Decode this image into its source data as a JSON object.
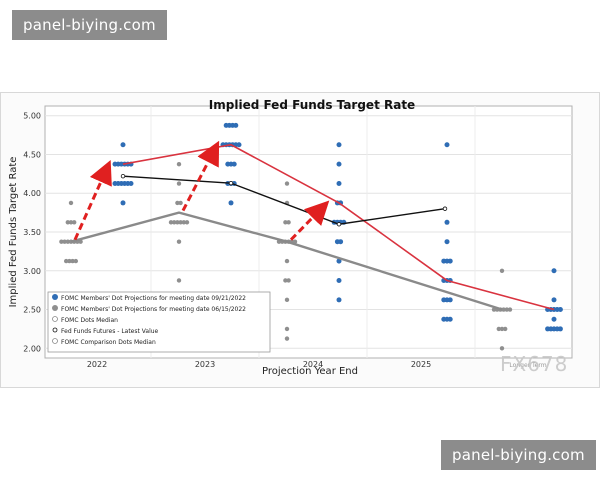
{
  "watermark_top": "panel-biying.com",
  "watermark_bottom": "panel-biying.com",
  "logo_text": "FX678",
  "chart_data": {
    "type": "scatter",
    "title": "Implied Fed Funds Target Rate",
    "xlabel": "Projection Year End",
    "ylabel": "Implied Fed Funds Target Rate",
    "ylim": [
      1.875,
      5.125
    ],
    "yticks": [
      "2.00",
      "2.50",
      "3.00",
      "3.50",
      "4.00",
      "4.50",
      "5.00"
    ],
    "categories": [
      "2022",
      "2023",
      "2024",
      "2025",
      "Longer Term"
    ],
    "series": [
      {
        "name": "FOMC Members' Dot Projections for meeting date 09/21/2022",
        "color": "#2f6db5",
        "dots": [
          {
            "year": "2022",
            "y": 4.625,
            "n": 1
          },
          {
            "year": "2022",
            "y": 4.375,
            "n": 6
          },
          {
            "year": "2022",
            "y": 4.125,
            "n": 6
          },
          {
            "year": "2022",
            "y": 3.875,
            "n": 1
          },
          {
            "year": "2023",
            "y": 4.875,
            "n": 4
          },
          {
            "year": "2023",
            "y": 4.625,
            "n": 6
          },
          {
            "year": "2023",
            "y": 4.375,
            "n": 3
          },
          {
            "year": "2023",
            "y": 4.125,
            "n": 3
          },
          {
            "year": "2023",
            "y": 3.875,
            "n": 1
          },
          {
            "year": "2024",
            "y": 4.625,
            "n": 1
          },
          {
            "year": "2024",
            "y": 4.375,
            "n": 1
          },
          {
            "year": "2024",
            "y": 4.125,
            "n": 1
          },
          {
            "year": "2024",
            "y": 3.875,
            "n": 2
          },
          {
            "year": "2024",
            "y": 3.625,
            "n": 4
          },
          {
            "year": "2024",
            "y": 3.375,
            "n": 2
          },
          {
            "year": "2024",
            "y": 3.125,
            "n": 1
          },
          {
            "year": "2024",
            "y": 2.875,
            "n": 1
          },
          {
            "year": "2024",
            "y": 2.625,
            "n": 1
          },
          {
            "year": "2025",
            "y": 4.625,
            "n": 1
          },
          {
            "year": "2025",
            "y": 3.625,
            "n": 1
          },
          {
            "year": "2025",
            "y": 3.375,
            "n": 1
          },
          {
            "year": "2025",
            "y": 3.125,
            "n": 3
          },
          {
            "year": "2025",
            "y": 2.875,
            "n": 3
          },
          {
            "year": "2025",
            "y": 2.625,
            "n": 3
          },
          {
            "year": "2025",
            "y": 2.375,
            "n": 3
          },
          {
            "year": "Longer Term",
            "y": 3.0,
            "n": 1
          },
          {
            "year": "Longer Term",
            "y": 2.625,
            "n": 1
          },
          {
            "year": "Longer Term",
            "y": 2.5,
            "n": 5
          },
          {
            "year": "Longer Term",
            "y": 2.375,
            "n": 1
          },
          {
            "year": "Longer Term",
            "y": 2.25,
            "n": 5
          }
        ]
      },
      {
        "name": "FOMC Members' Dot Projections for meeting date 06/15/2022",
        "color": "#8f8f8f",
        "dots": [
          {
            "year": "2022",
            "y": 3.875,
            "n": 1
          },
          {
            "year": "2022",
            "y": 3.625,
            "n": 3
          },
          {
            "year": "2022",
            "y": 3.375,
            "n": 7
          },
          {
            "year": "2022",
            "y": 3.125,
            "n": 4
          },
          {
            "year": "2023",
            "y": 4.375,
            "n": 1
          },
          {
            "year": "2023",
            "y": 4.125,
            "n": 1
          },
          {
            "year": "2023",
            "y": 3.875,
            "n": 2
          },
          {
            "year": "2023",
            "y": 3.625,
            "n": 6
          },
          {
            "year": "2023",
            "y": 3.375,
            "n": 1
          },
          {
            "year": "2023",
            "y": 2.875,
            "n": 1
          },
          {
            "year": "2024",
            "y": 4.125,
            "n": 1
          },
          {
            "year": "2024",
            "y": 3.875,
            "n": 1
          },
          {
            "year": "2024",
            "y": 3.625,
            "n": 2
          },
          {
            "year": "2024",
            "y": 3.375,
            "n": 6
          },
          {
            "year": "2024",
            "y": 3.125,
            "n": 1
          },
          {
            "year": "2024",
            "y": 2.875,
            "n": 2
          },
          {
            "year": "2024",
            "y": 2.625,
            "n": 1
          },
          {
            "year": "2024",
            "y": 2.25,
            "n": 1
          },
          {
            "year": "2024",
            "y": 2.125,
            "n": 1
          },
          {
            "year": "Longer Term",
            "y": 3.0,
            "n": 1
          },
          {
            "year": "Longer Term",
            "y": 2.5,
            "n": 6
          },
          {
            "year": "Longer Term",
            "y": 2.25,
            "n": 3
          },
          {
            "year": "Longer Term",
            "y": 2.0,
            "n": 1
          }
        ]
      }
    ],
    "lines": [
      {
        "name": "FOMC Dots Median",
        "color": "#d9333f",
        "points": [
          [
            "2022",
            4.375
          ],
          [
            "2023",
            4.625
          ],
          [
            "2024",
            3.875
          ],
          [
            "2025",
            2.875
          ],
          [
            "Longer Term",
            2.5
          ]
        ]
      },
      {
        "name": "Fed Funds Futures - Latest Value",
        "color": "#111111",
        "points": [
          [
            "2022",
            4.22
          ],
          [
            "2023",
            4.13
          ],
          [
            "2024",
            3.6
          ],
          [
            "2025",
            3.8
          ]
        ]
      },
      {
        "name": "FOMC Comparison Dots Median",
        "color": "#8a8a8a",
        "points": [
          [
            "2022",
            3.375
          ],
          [
            "2023",
            3.75
          ],
          [
            "2024",
            3.375
          ],
          [
            "Longer Term",
            2.5
          ]
        ]
      }
    ],
    "arrows": [
      {
        "from": [
          "2022",
          3.375
        ],
        "to": [
          "2022",
          4.375
        ],
        "color": "#e02020"
      },
      {
        "from": [
          "2023",
          3.75
        ],
        "to": [
          "2023",
          4.625
        ],
        "color": "#e02020"
      },
      {
        "from": [
          "2024",
          3.375
        ],
        "to": [
          "2024",
          3.875
        ],
        "color": "#e02020"
      }
    ],
    "legend": {
      "position": "bottom-left",
      "entries": [
        "FOMC Members' Dot Projections for meeting date 09/21/2022",
        "FOMC Members' Dot Projections for meeting date 06/15/2022",
        "FOMC Dots Median",
        "Fed Funds Futures - Latest Value",
        "FOMC Comparison Dots Median"
      ]
    }
  }
}
